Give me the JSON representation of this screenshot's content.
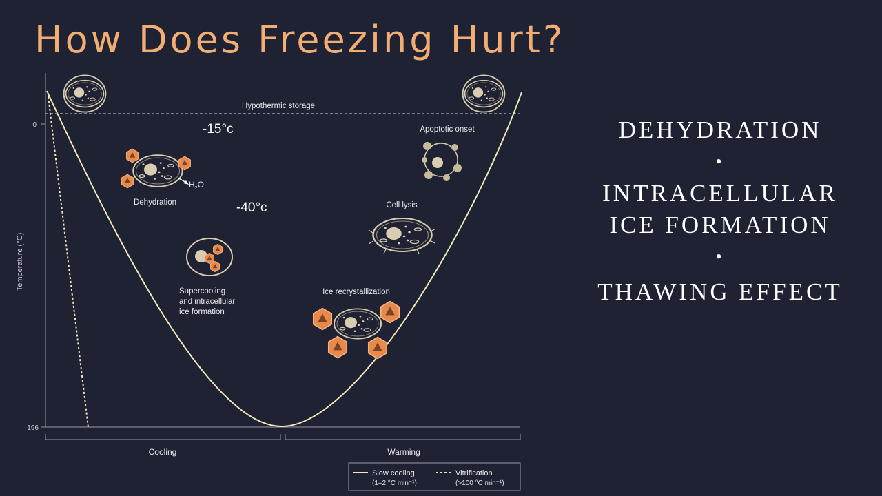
{
  "slide": {
    "title": "How Does Freezing Hurt?",
    "points": [
      "DEHYDRATION",
      "INTRACELLULAR",
      "ICE FORMATION",
      "THAWING EFFECT"
    ],
    "bullet_symbol": "•"
  },
  "diagram": {
    "y_axis_label": "Temperature (°C)",
    "y_ticks": [
      "0",
      "–196"
    ],
    "x_groups": [
      "Cooling",
      "Warming"
    ],
    "hypothermic_label": "Hypothermic storage",
    "stage_labels": {
      "dehydration": "Dehydration",
      "water": "H",
      "water_sub": "2",
      "water_o": "O",
      "supercooling_1": "Supercooling",
      "supercooling_2": "and intracellular",
      "supercooling_3": "ice formation",
      "apoptotic": "Apoptotic onset",
      "cell_lysis": "Cell lysis",
      "ice_recrystal": "Ice recrystallization"
    },
    "temp_annotations": [
      "-15°c",
      "-40°c"
    ],
    "legend": {
      "slow": "Slow cooling",
      "slow_rate": "(1–2 °C min⁻¹)",
      "vitri": "Vitrification",
      "vitri_rate": "(>100 °C min⁻¹)"
    },
    "colors": {
      "curve": "#f3e8b8",
      "axis": "#9a9aa6",
      "ice": "#e8884a",
      "cell": "#d9cdb1",
      "text": "#e8e8ec",
      "background": "#1f2233"
    }
  }
}
